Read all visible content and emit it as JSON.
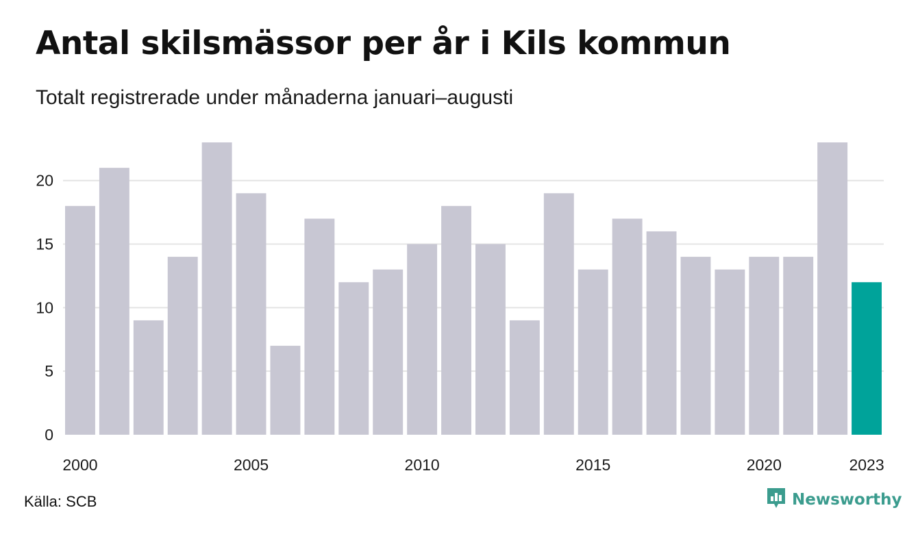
{
  "title": "Antal skilsmässor per år i Kils kommun",
  "subtitle": "Totalt registrerade under månaderna januari–augusti",
  "source": "Källa: SCB",
  "brand": {
    "name": "Newsworthy",
    "icon": "newsworthy-logo-icon",
    "color": "#3b9c8e"
  },
  "colors": {
    "bar": "#c8c7d3",
    "highlight": "#00a39a",
    "grid": "#e4e4e4"
  },
  "chart_data": {
    "type": "bar",
    "title": "Antal skilsmässor per år i Kils kommun",
    "subtitle": "Totalt registrerade under månaderna januari–augusti",
    "xlabel": "",
    "ylabel": "",
    "categories": [
      "2000",
      "2001",
      "2002",
      "2003",
      "2004",
      "2005",
      "2006",
      "2007",
      "2008",
      "2009",
      "2010",
      "2011",
      "2012",
      "2013",
      "2014",
      "2015",
      "2016",
      "2017",
      "2018",
      "2019",
      "2020",
      "2021",
      "2022",
      "2023"
    ],
    "values": [
      18,
      21,
      9,
      14,
      23,
      19,
      7,
      17,
      12,
      13,
      15,
      18,
      15,
      9,
      19,
      13,
      17,
      16,
      14,
      13,
      14,
      14,
      23,
      12
    ],
    "highlight_category": "2023",
    "x_tick_labels": [
      "2000",
      "2005",
      "2010",
      "2015",
      "2020",
      "2023"
    ],
    "y_ticks": [
      0,
      5,
      10,
      15,
      20
    ],
    "ylim": [
      0,
      23
    ],
    "grid": "horizontal",
    "legend": "none"
  }
}
